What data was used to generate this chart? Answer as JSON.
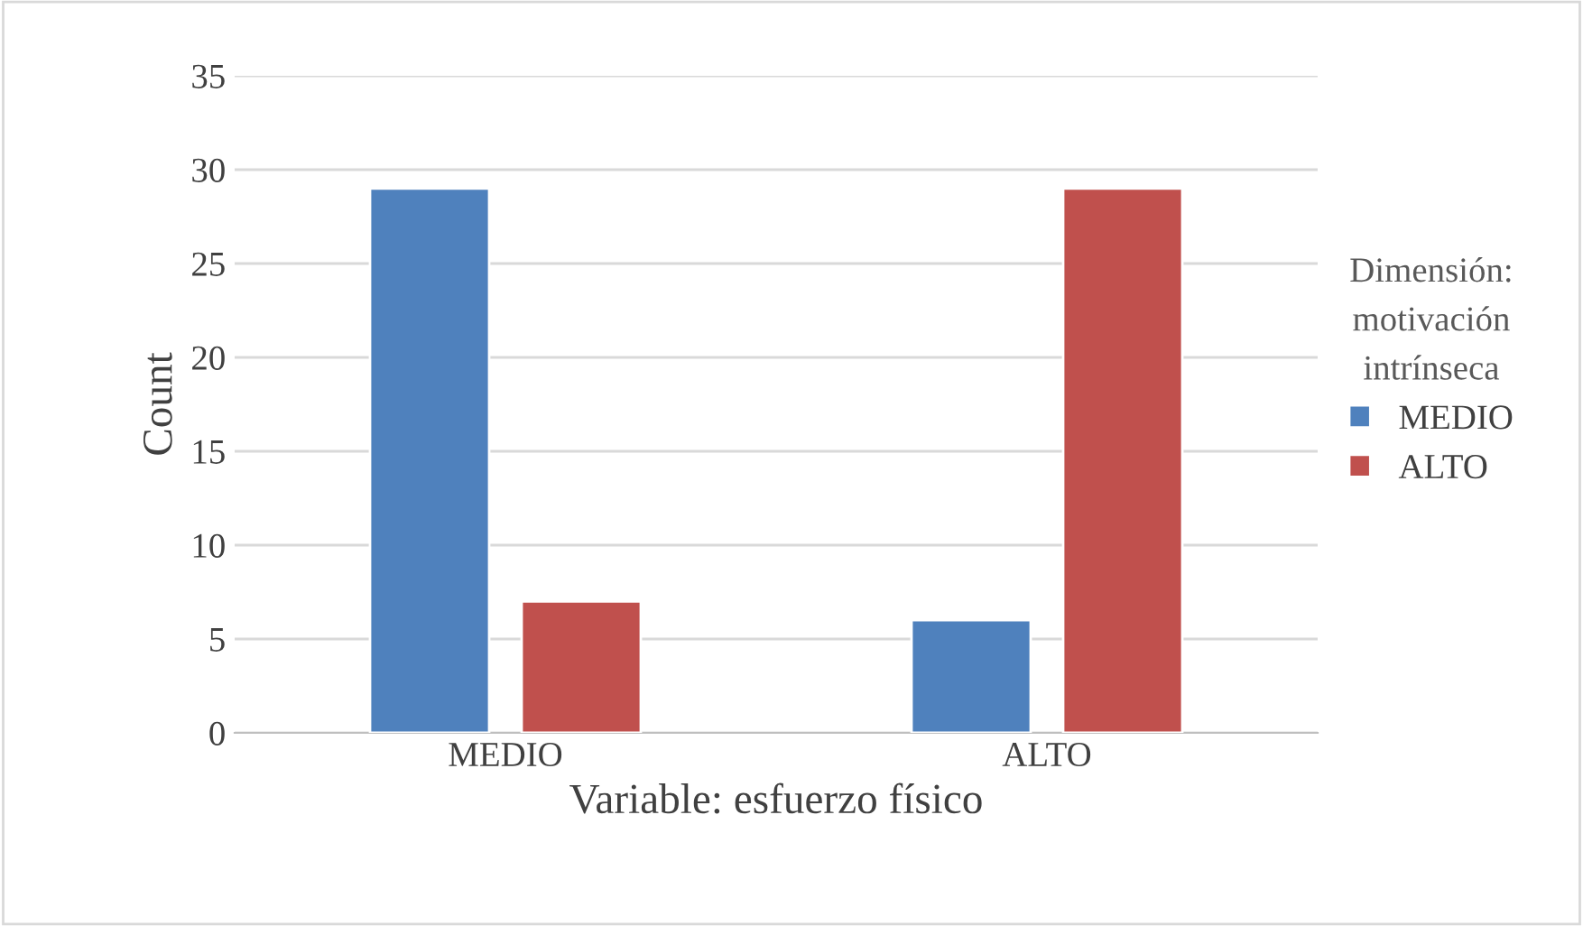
{
  "chart_data": {
    "type": "bar",
    "xlabel": "Variable: esfuerzo físico",
    "ylabel": "Count",
    "legend_title": "Dimensión:\nmotivación\nintrínseca",
    "categories": [
      "MEDIO",
      "ALTO"
    ],
    "series": [
      {
        "name": "MEDIO",
        "color": "#4f81bd",
        "values": [
          29,
          6
        ]
      },
      {
        "name": "ALTO",
        "color": "#c0504d",
        "values": [
          7,
          29
        ]
      }
    ],
    "ylim": [
      0,
      35
    ],
    "yticks": [
      0,
      5,
      10,
      15,
      20,
      25,
      30,
      35
    ],
    "grid": "y",
    "legend": "right"
  }
}
